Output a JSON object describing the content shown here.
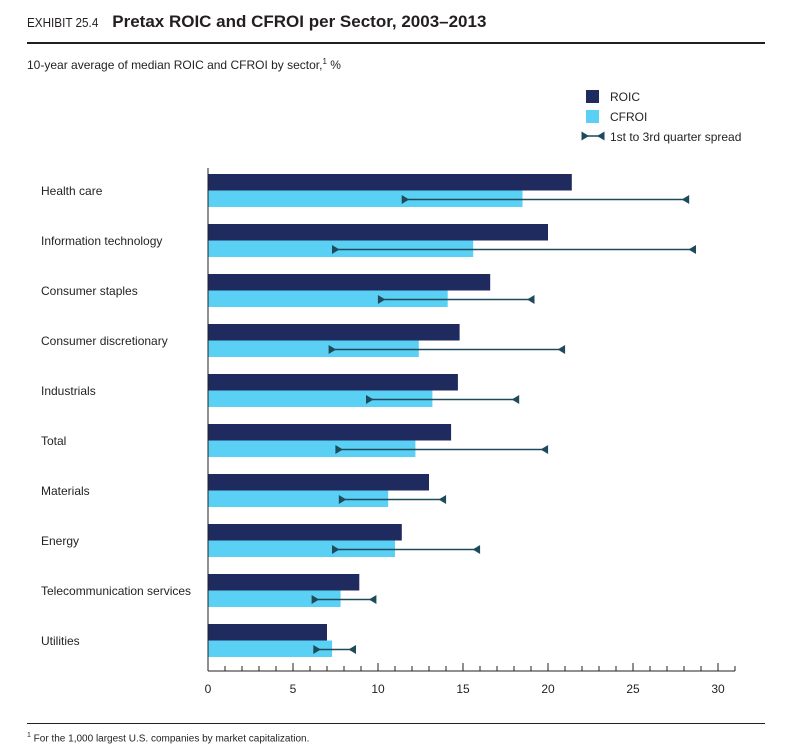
{
  "header": {
    "exhibit": "EXHIBIT 25.4",
    "title": "Pretax ROIC and CFROI per Sector, 2003–2013",
    "subtitle": "10-year average of median ROIC and CFROI by sector,",
    "subtitle_sup": "1",
    "subtitle_unit": " %"
  },
  "footnote": {
    "sup": "1",
    "text": " For the 1,000 largest U.S. companies by market capitalization."
  },
  "colors": {
    "roic": "#1f2a5e",
    "cfroi": "#5bd0f5",
    "spread": "#1e4b5c",
    "axis": "#231f20"
  },
  "chart_data": {
    "type": "bar",
    "orientation": "horizontal",
    "categories": [
      "Health care",
      "Information technology",
      "Consumer staples",
      "Consumer discretionary",
      "Industrials",
      "Total",
      "Materials",
      "Energy",
      "Telecommunication services",
      "Utilities"
    ],
    "series": [
      {
        "name": "ROIC",
        "values": [
          21.4,
          20.0,
          16.6,
          14.8,
          14.7,
          14.3,
          13.0,
          11.4,
          8.9,
          7.0
        ]
      },
      {
        "name": "CFROI",
        "values": [
          18.5,
          15.6,
          14.1,
          12.4,
          13.2,
          12.2,
          10.6,
          11.0,
          7.8,
          7.3
        ]
      }
    ],
    "spread": {
      "name": "1st to 3rd quarter spread",
      "low": [
        11.6,
        7.5,
        10.2,
        7.3,
        9.5,
        7.7,
        7.9,
        7.5,
        6.3,
        6.4
      ],
      "high": [
        28.1,
        28.5,
        19.0,
        20.8,
        18.1,
        19.8,
        13.8,
        15.8,
        9.7,
        8.5
      ]
    },
    "legend": [
      "ROIC",
      "CFROI",
      "1st to 3rd quarter spread"
    ],
    "legend_position": "top-right",
    "xlim": [
      0,
      31
    ],
    "xticks": [
      "0",
      "5",
      "10",
      "15",
      "20",
      "25",
      "30"
    ],
    "xlabel": "",
    "ylabel": "",
    "grid": false
  }
}
